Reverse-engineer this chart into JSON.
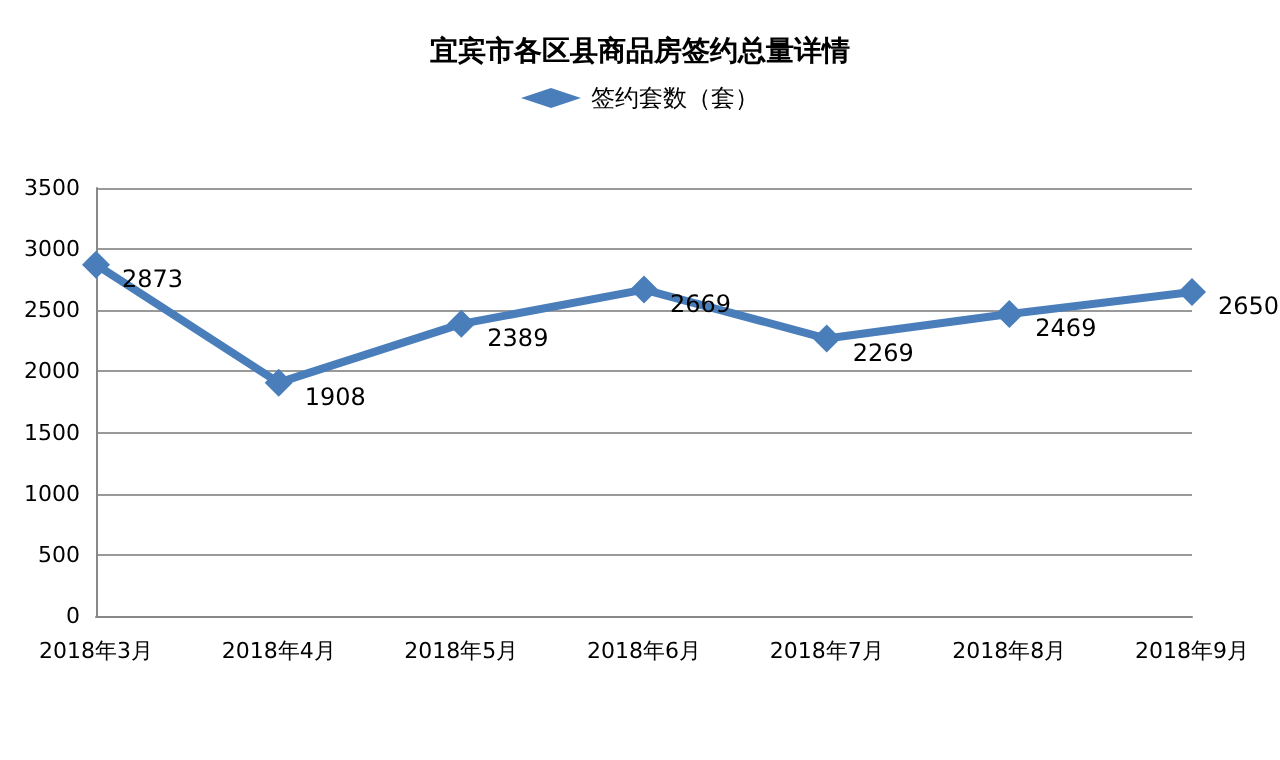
{
  "chart_data": {
    "type": "line",
    "title": "宜宾市各区县商品房签约总量详情",
    "categories": [
      "2018年3月",
      "2018年4月",
      "2018年5月",
      "2018年6月",
      "2018年7月",
      "2018年8月",
      "2018年9月"
    ],
    "series": [
      {
        "name": "签约套数（套）",
        "color": "#4a7ebb",
        "values": [
          2873,
          1908,
          2389,
          2669,
          2269,
          2469,
          2650
        ]
      }
    ],
    "ylim": [
      0,
      3500
    ],
    "yticks": [
      0,
      500,
      1000,
      1500,
      2000,
      2500,
      3000,
      3500
    ],
    "grid": "y",
    "legend": "top",
    "marker": "diamond",
    "line_style": "solid",
    "data_labels": true
  }
}
